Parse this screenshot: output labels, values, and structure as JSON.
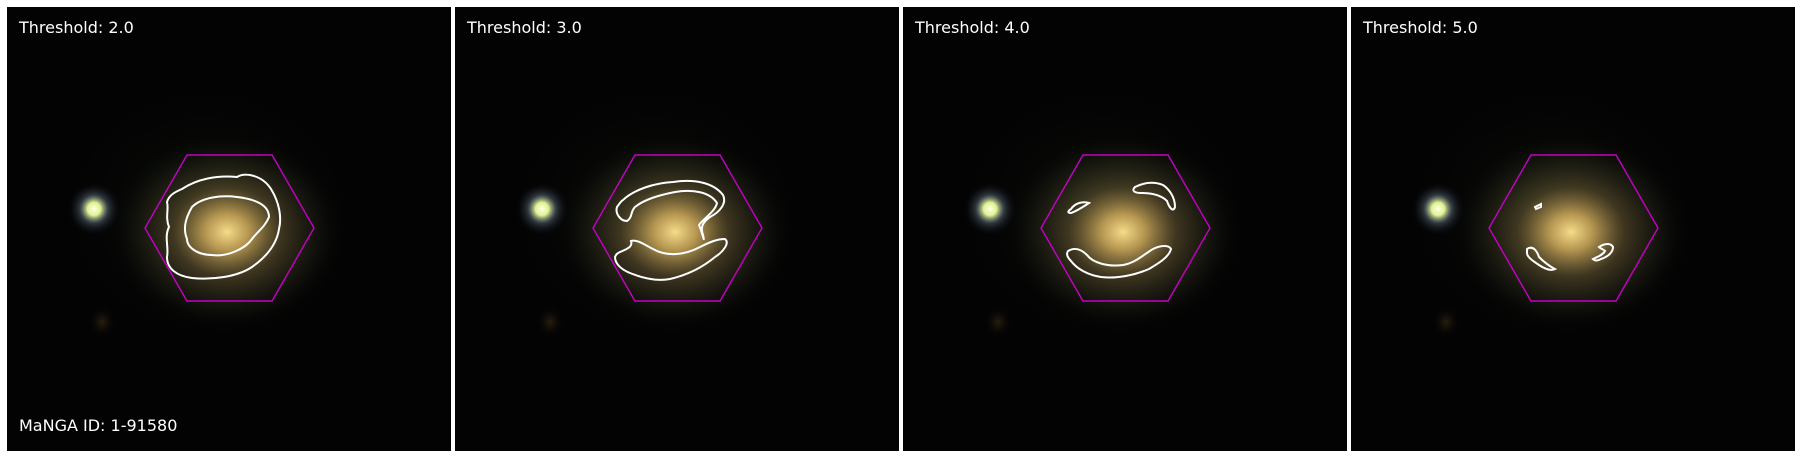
{
  "figure": {
    "panels": [
      {
        "threshold_label": "Threshold: 2.0"
      },
      {
        "threshold_label": "Threshold: 3.0"
      },
      {
        "threshold_label": "Threshold: 4.0"
      },
      {
        "threshold_label": "Threshold: 5.0"
      }
    ],
    "manga_id_label": "MaNGA ID: 1-91580",
    "colors": {
      "hexagon": "#c400c4",
      "contour": "#ffffff",
      "background": "#030303",
      "galaxy_core": "#e8c878",
      "star": "#f4ffc0"
    }
  }
}
